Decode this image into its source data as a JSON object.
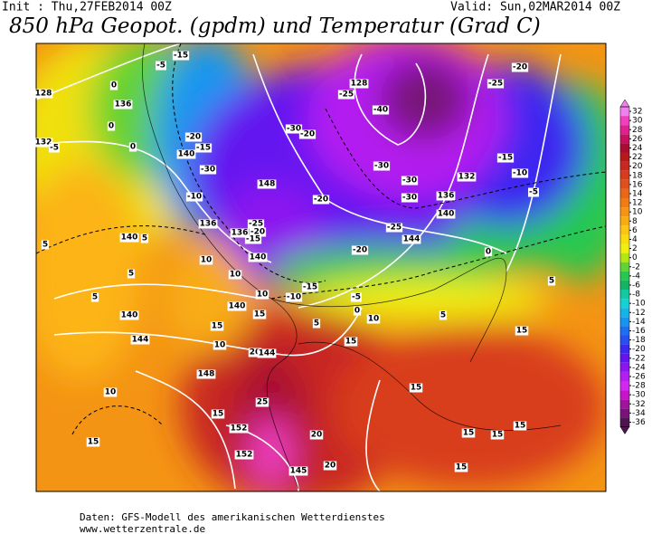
{
  "header": {
    "init": "Init : Thu,27FEB2014 00Z",
    "valid": "Valid: Sun,02MAR2014 00Z",
    "title": "850 hPa Geopot. (gpdm) und Temperatur (Grad C)"
  },
  "colorbar": {
    "labels": [
      32,
      30,
      28,
      26,
      24,
      22,
      20,
      18,
      16,
      14,
      12,
      10,
      8,
      6,
      4,
      2,
      0,
      -2,
      -4,
      -6,
      -8,
      -10,
      -12,
      -14,
      -16,
      -18,
      -20,
      -22,
      -24,
      -26,
      -28,
      -30,
      -32,
      -34,
      -36
    ],
    "colors": [
      "#f080f0",
      "#f040c0",
      "#e02090",
      "#c81060",
      "#a80c30",
      "#b81818",
      "#c82820",
      "#d83c1c",
      "#e0501c",
      "#e86818",
      "#f07c14",
      "#f49414",
      "#f8ac14",
      "#fcc414",
      "#f8dc10",
      "#f0f010",
      "#b4e614",
      "#64d232",
      "#28c850",
      "#14b464",
      "#14c8a0",
      "#14d2d2",
      "#14b4e6",
      "#1496f0",
      "#1e6ef0",
      "#2850f0",
      "#3c28f0",
      "#6414f0",
      "#8c14f0",
      "#b41ef0",
      "#d228f0",
      "#c814c8",
      "#a0149c",
      "#781478",
      "#501450"
    ]
  },
  "map_labels": [
    "128",
    "-5",
    "-15",
    "0",
    "136",
    "0",
    "0",
    "132",
    "-5",
    "-20",
    "-15",
    "140",
    "-30",
    "-10",
    "148",
    "136",
    "-25",
    "-20",
    "136",
    "-15",
    "140",
    "5",
    "5",
    "10",
    "140",
    "10",
    "5",
    "5",
    "140",
    "10",
    "140",
    "15",
    "144",
    "10",
    "20",
    "144",
    "15",
    "148",
    "10",
    "15",
    "25",
    "152",
    "15",
    "152",
    "145",
    "20",
    "20",
    "15",
    "-30",
    "-20",
    "128",
    "-25",
    "-40",
    "-30",
    "-30",
    "-30",
    "-20",
    "-20",
    "-25",
    "144",
    "136",
    "140",
    "132",
    "-20",
    "-25",
    "-15",
    "-10",
    "-5",
    "0",
    "-10",
    "-15",
    "-5",
    "0",
    "10",
    "5",
    "15",
    "5",
    "5",
    "15",
    "15",
    "15",
    "15",
    "15"
  ],
  "footer": {
    "line1": "Daten: GFS-Modell des amerikanischen Wetterdienstes",
    "line2": "www.wetterzentrale.de"
  }
}
